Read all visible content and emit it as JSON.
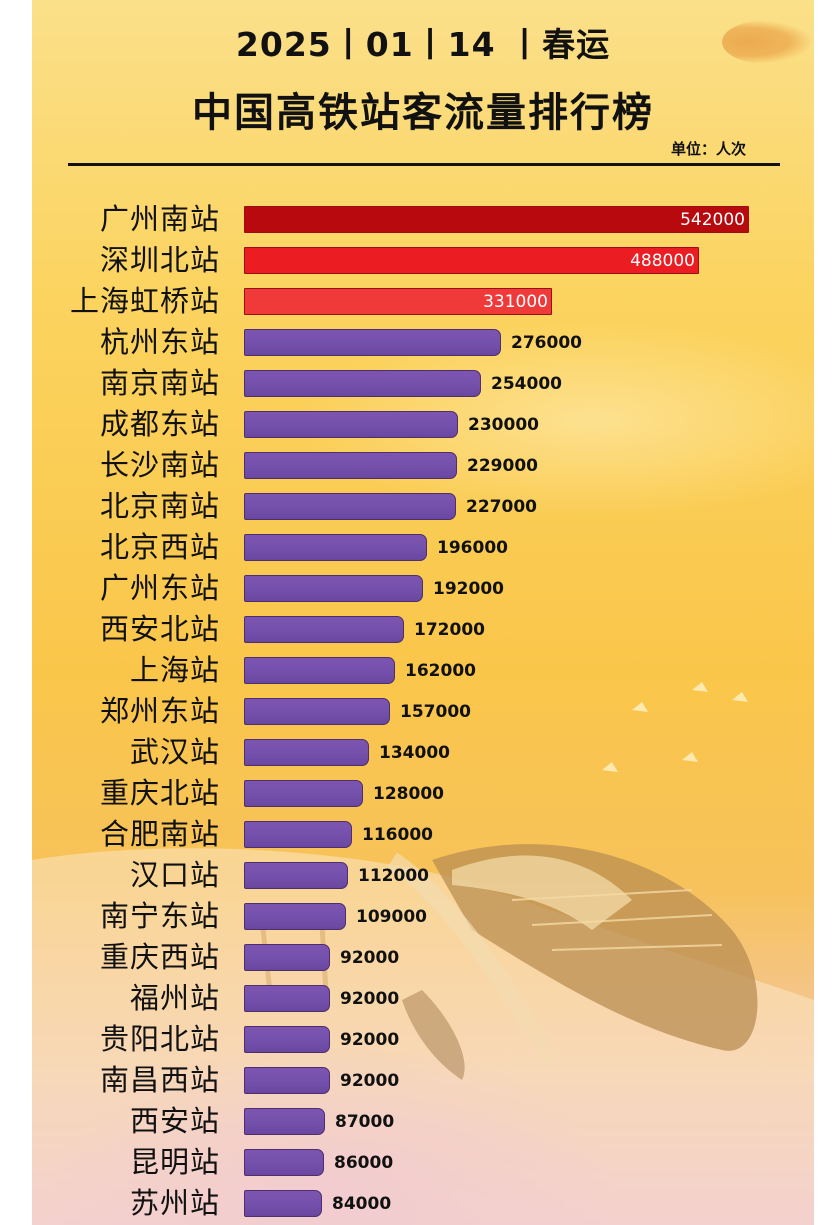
{
  "header": {
    "date_line": "2025丨01丨14 丨春运",
    "title": "中国高铁站客流量排行榜",
    "unit": "单位：人次"
  },
  "colors": {
    "rank1": "#b8090f",
    "rank2": "#ec1d22",
    "rank3": "#f03a3a",
    "others": "#7451ad",
    "background": "#fac64a"
  },
  "chart_data": {
    "type": "bar",
    "orientation": "horizontal",
    "title": "中国高铁站客流量排行榜",
    "subtitle": "2025丨01丨14 丨春运",
    "xlabel": "",
    "ylabel": "",
    "unit": "人次",
    "grid": false,
    "legend": null,
    "xlim": [
      0,
      542000
    ],
    "categories": [
      "广州南站",
      "深圳北站",
      "上海虹桥站",
      "杭州东站",
      "南京南站",
      "成都东站",
      "长沙南站",
      "北京南站",
      "北京西站",
      "广州东站",
      "西安北站",
      "上海站",
      "郑州东站",
      "武汉站",
      "重庆北站",
      "合肥南站",
      "汉口站",
      "南宁东站",
      "重庆西站",
      "福州站",
      "贵阳北站",
      "南昌西站",
      "西安站",
      "昆明站",
      "苏州站"
    ],
    "values": [
      542000,
      488000,
      331000,
      276000,
      254000,
      230000,
      229000,
      227000,
      196000,
      192000,
      172000,
      162000,
      157000,
      134000,
      128000,
      116000,
      112000,
      109000,
      92000,
      92000,
      92000,
      92000,
      87000,
      86000,
      84000
    ],
    "value_labels": [
      "542000",
      "488000",
      "331000",
      "276000",
      "254000",
      "230000",
      "229000",
      "227000",
      "196000",
      "192000",
      "172000",
      "162000",
      "157000",
      "134000",
      "128000",
      "116000",
      "112000",
      "109000",
      "92000",
      "92000",
      "92000",
      "92000",
      "87000",
      "86000",
      "84000"
    ]
  }
}
